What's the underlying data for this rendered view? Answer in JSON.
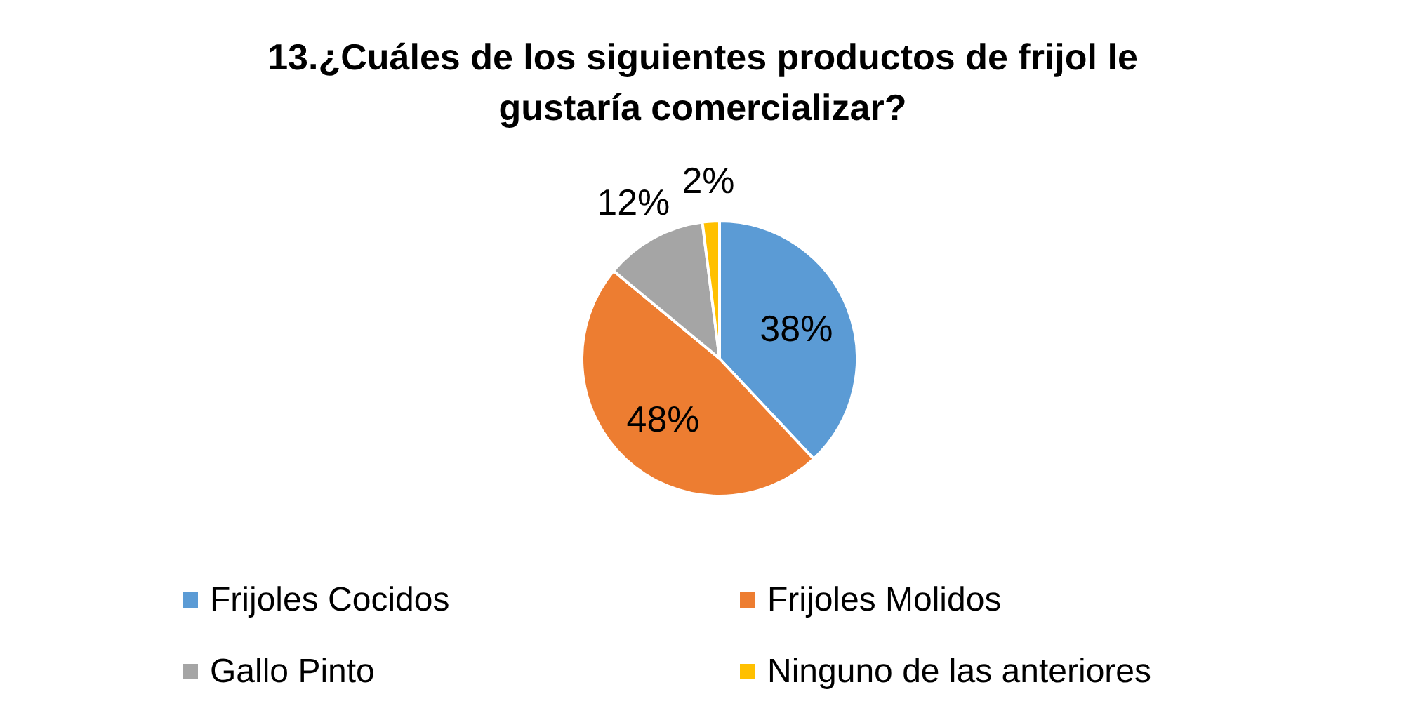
{
  "chart_data": {
    "type": "pie",
    "title": "13.¿Cuáles de los siguientes productos de frijol le gustaría comercializar?",
    "categories": [
      "Frijoles Cocidos",
      "Frijoles Molidos",
      "Gallo Pinto",
      "Ninguno de las anteriores"
    ],
    "values": [
      38,
      48,
      12,
      2
    ],
    "colors": [
      "#5b9bd5",
      "#ed7d31",
      "#a5a5a5",
      "#ffc000"
    ],
    "value_labels": [
      "38%",
      "48%",
      "12%",
      "2%"
    ],
    "legend": "bottom"
  }
}
